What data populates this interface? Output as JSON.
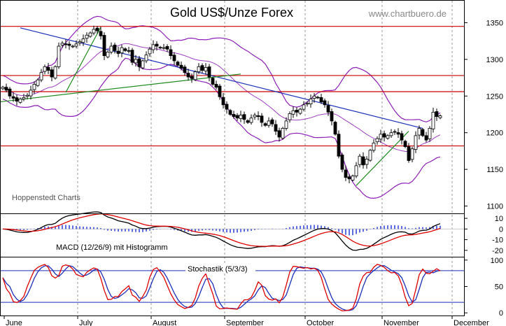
{
  "chart_data": {
    "type": "line",
    "title": "Gold US$/Unze Forex",
    "source": "www.chartbuero.de",
    "watermark": "Hoppenstedt Charts",
    "months": [
      "June",
      "July",
      "August",
      "September",
      "October",
      "November",
      "December"
    ],
    "colors": {
      "price": "#000000",
      "bollinger": "#8b1fb5",
      "resistance": "#cc0000",
      "downtrend": "#1c2fb8",
      "uptrend": "#1e8a1e",
      "macd": "#000000",
      "signal": "#dd0000",
      "histogram": "#2a3bd8",
      "stoch_k": "#dd0000",
      "stoch_d": "#1c2fb8"
    },
    "price_panel": {
      "ylim": [
        1090,
        1380
      ],
      "ticks": [
        1350,
        1300,
        1250,
        1200,
        1150,
        1100
      ],
      "horizontal_lines": [
        1345,
        1278,
        1256,
        1182
      ],
      "downtrend": {
        "from": [
          5,
          1343
        ],
        "to": [
          120,
          1206
        ]
      },
      "uptrend_1": {
        "from": [
          -1,
          1242
        ],
        "to": [
          68,
          1280
        ]
      },
      "uptrend_2": {
        "from": [
          18,
          1255
        ],
        "to": [
          28,
          1344
        ]
      },
      "uptrend_3": {
        "from": [
          101,
          1128
        ],
        "to": [
          116,
          1202
        ]
      },
      "closes": [
        1262,
        1258,
        1250,
        1247,
        1243,
        1246,
        1248,
        1251,
        1258,
        1266,
        1272,
        1282,
        1290,
        1285,
        1276,
        1290,
        1318,
        1322,
        1320,
        1319,
        1318,
        1321,
        1324,
        1328,
        1333,
        1336,
        1341,
        1339,
        1332,
        1305,
        1310,
        1318,
        1312,
        1308,
        1316,
        1312,
        1311,
        1296,
        1300,
        1290,
        1298,
        1306,
        1314,
        1320,
        1318,
        1316,
        1316,
        1314,
        1305,
        1298,
        1292,
        1288,
        1282,
        1276,
        1274,
        1283,
        1290,
        1285,
        1289,
        1276,
        1266,
        1262,
        1249,
        1238,
        1232,
        1225,
        1222,
        1220,
        1224,
        1218,
        1214,
        1220,
        1224,
        1222,
        1214,
        1210,
        1216,
        1212,
        1202,
        1194,
        1206,
        1216,
        1226,
        1230,
        1228,
        1232,
        1238,
        1240,
        1246,
        1250,
        1248,
        1242,
        1238,
        1228,
        1216,
        1198,
        1168,
        1150,
        1139,
        1137,
        1141,
        1155,
        1168,
        1156,
        1164,
        1176,
        1186,
        1192,
        1198,
        1194,
        1196,
        1200,
        1201,
        1198,
        1190,
        1181,
        1162,
        1178,
        1196,
        1206,
        1196,
        1190,
        1206,
        1228,
        1222,
        1223
      ]
    },
    "macd_panel": {
      "label": "MACD (12/26/9) mit Histogramm",
      "ylim": [
        -26,
        14
      ],
      "ticks": [
        10,
        0,
        -10,
        -20
      ],
      "ticks_display": [
        "10",
        "0",
        "-10",
        "-20"
      ]
    },
    "stoch_panel": {
      "label": "Stochastik (5/3/3)",
      "ylim": [
        -5,
        105
      ],
      "ticks": [
        100,
        50,
        0
      ],
      "lines": [
        80,
        20
      ]
    }
  }
}
